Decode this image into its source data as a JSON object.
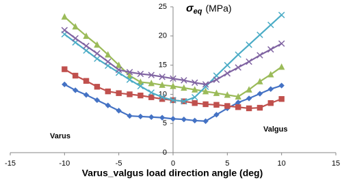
{
  "chart_data": {
    "type": "line",
    "x_label": "Varus_valgus load direction angle (deg)",
    "y_label": {
      "symbol": "σ",
      "subscript": "eq",
      "unit": "(MPa)"
    },
    "annotations": [
      "Varus",
      "Valgus"
    ],
    "x": [
      -10,
      -9,
      -8,
      -7,
      -6,
      -5,
      -4,
      -3,
      -2,
      -1,
      0,
      1,
      2,
      3,
      4,
      5,
      6,
      7,
      8,
      9,
      10
    ],
    "series": [
      {
        "color": "#4472c4",
        "marker": "diamond",
        "values": [
          11.7,
          10.7,
          9.9,
          9.0,
          8.1,
          7.2,
          6.3,
          6.2,
          6.1,
          6.0,
          5.8,
          5.7,
          5.5,
          5.4,
          6.5,
          7.6,
          8.6,
          9.3,
          10.1,
          10.9,
          11.5
        ]
      },
      {
        "color": "#c0504d",
        "marker": "square",
        "values": [
          14.3,
          13.2,
          12.3,
          11.3,
          10.5,
          10.2,
          10.0,
          9.8,
          9.5,
          9.2,
          9.0,
          8.8,
          8.5,
          8.3,
          8.2,
          8.0,
          7.8,
          7.6,
          7.7,
          8.5,
          9.2
        ]
      },
      {
        "color": "#9bbb59",
        "marker": "triangle",
        "values": [
          23.3,
          21.6,
          20.0,
          18.5,
          16.8,
          15.0,
          13.2,
          12.1,
          11.9,
          11.6,
          11.4,
          11.1,
          10.8,
          10.5,
          10.2,
          9.9,
          9.6,
          10.8,
          12.2,
          13.4,
          14.7
        ]
      },
      {
        "color": "#4bacc6",
        "marker": "cross",
        "values": [
          20.3,
          18.9,
          17.5,
          16.1,
          14.9,
          13.7,
          12.5,
          11.4,
          10.3,
          9.5,
          9.0,
          8.8,
          9.5,
          11.3,
          13.2,
          15.0,
          16.8,
          18.5,
          20.2,
          21.9,
          23.6
        ]
      },
      {
        "color": "#8064a2",
        "marker": "cross",
        "values": [
          21.0,
          19.6,
          18.3,
          17.0,
          15.6,
          14.2,
          13.8,
          13.5,
          13.3,
          13.0,
          12.7,
          12.4,
          12.0,
          11.7,
          12.5,
          13.6,
          14.6,
          15.6,
          16.7,
          17.7,
          18.7
        ]
      }
    ],
    "xlim": [
      -15,
      15
    ],
    "xticks": [
      -15,
      -10,
      -5,
      0,
      5,
      10,
      15
    ],
    "ylim": [
      0,
      25
    ],
    "yticks": [
      0,
      5,
      10,
      15,
      20,
      25
    ],
    "grid": false
  }
}
